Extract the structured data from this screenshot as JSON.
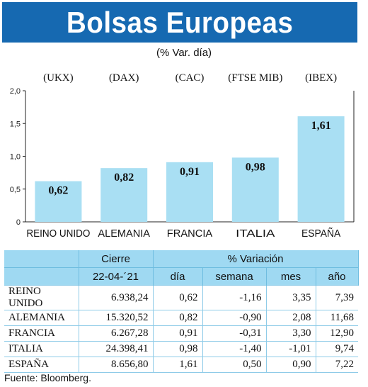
{
  "header": {
    "title": "Bolsas Europeas",
    "subtitle": "(% Var. día)"
  },
  "chart_data": {
    "type": "bar",
    "tickers": [
      "(UKX)",
      "(DAX)",
      "(CAC)",
      "(FTSE MIB)",
      "(IBEX)"
    ],
    "categories": [
      "REINO UNIDO",
      "ALEMANIA",
      "FRANCIA",
      "ITALIA",
      "ESPAÑA"
    ],
    "values": [
      0.62,
      0.82,
      0.91,
      0.98,
      1.61
    ],
    "value_labels": [
      "0,62",
      "0,82",
      "0,91",
      "0,98",
      "1,61"
    ],
    "yticks": [
      0,
      0.5,
      1.0,
      1.5,
      2.0
    ],
    "ytick_labels": [
      "0",
      "0,5",
      "1,0",
      "1,5",
      "2,0"
    ],
    "ylim": [
      0,
      2.0
    ],
    "grid": false,
    "bar_color": "#a9dff3"
  },
  "table": {
    "head1": [
      "",
      "Cierre",
      "% Variación"
    ],
    "head2": [
      "",
      "22-04-´21",
      "día",
      "semana",
      "mes",
      "año"
    ],
    "rows": [
      [
        "REINO UNIDO",
        "6.938,24",
        "0,62",
        "-1,16",
        "3,35",
        "7,39"
      ],
      [
        "ALEMANIA",
        "15.320,52",
        "0,82",
        "-0,90",
        "2,08",
        "11,68"
      ],
      [
        "FRANCIA",
        "6.267,28",
        "0,91",
        "-0,31",
        "3,30",
        "12,90"
      ],
      [
        "ITALIA",
        "24.398,41",
        "0,98",
        "-1,40",
        "-1,01",
        "9,74"
      ],
      [
        "ESPAÑA",
        "8.656,80",
        "1,61",
        "0,50",
        "0,90",
        "7,22"
      ]
    ]
  },
  "footer": {
    "source": "Fuente: Bloomberg."
  }
}
